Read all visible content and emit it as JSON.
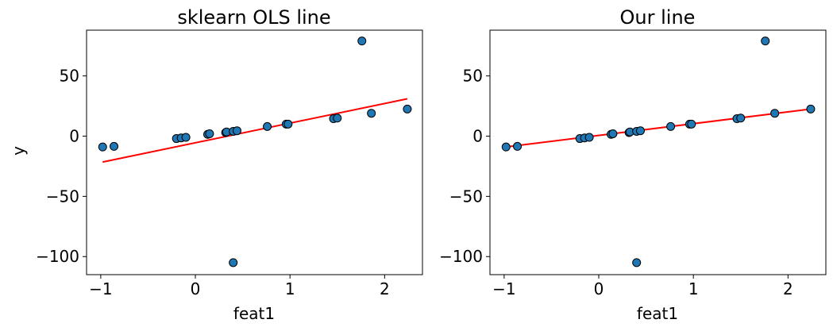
{
  "chart_data": [
    {
      "type": "scatter",
      "title": "sklearn OLS line",
      "xlabel": "feat1",
      "ylabel": "y",
      "xlim": [
        -1.15,
        2.4
      ],
      "ylim": [
        -115,
        88
      ],
      "xticks": [
        -1,
        0,
        1,
        2
      ],
      "xtick_labels": [
        "−1",
        "0",
        "1",
        "2"
      ],
      "yticks": [
        50,
        0,
        -50,
        -100
      ],
      "ytick_labels": [
        "50",
        "0",
        "−50",
        "−100"
      ],
      "grid": false,
      "point_color": "#1f77b4",
      "line_color": "#ff0000",
      "points": [
        {
          "x": -0.98,
          "y": -9
        },
        {
          "x": -0.86,
          "y": -8.5
        },
        {
          "x": -0.2,
          "y": -2
        },
        {
          "x": -0.15,
          "y": -1.5
        },
        {
          "x": -0.1,
          "y": -1
        },
        {
          "x": 0.13,
          "y": 1.5
        },
        {
          "x": 0.15,
          "y": 2
        },
        {
          "x": 0.32,
          "y": 3
        },
        {
          "x": 0.33,
          "y": 3.5
        },
        {
          "x": 0.4,
          "y": 4
        },
        {
          "x": 0.44,
          "y": 4.5
        },
        {
          "x": 0.76,
          "y": 8
        },
        {
          "x": 0.96,
          "y": 10
        },
        {
          "x": 0.98,
          "y": 10
        },
        {
          "x": 1.46,
          "y": 14.5
        },
        {
          "x": 1.5,
          "y": 15
        },
        {
          "x": 1.86,
          "y": 19
        },
        {
          "x": 2.24,
          "y": 22.5
        },
        {
          "x": 1.76,
          "y": 79
        },
        {
          "x": 0.4,
          "y": -105
        }
      ],
      "line": {
        "x": [
          -0.98,
          2.24
        ],
        "y": [
          -21.5,
          31
        ]
      }
    },
    {
      "type": "scatter",
      "title": "Our line",
      "xlabel": "feat1",
      "ylabel": "",
      "xlim": [
        -1.15,
        2.4
      ],
      "ylim": [
        -115,
        88
      ],
      "xticks": [
        -1,
        0,
        1,
        2
      ],
      "xtick_labels": [
        "−1",
        "0",
        "1",
        "2"
      ],
      "yticks": [
        50,
        0,
        -50,
        -100
      ],
      "ytick_labels": [
        "50",
        "0",
        "−50",
        "−100"
      ],
      "grid": false,
      "point_color": "#1f77b4",
      "line_color": "#ff0000",
      "points": [
        {
          "x": -0.98,
          "y": -9
        },
        {
          "x": -0.86,
          "y": -8.5
        },
        {
          "x": -0.2,
          "y": -2
        },
        {
          "x": -0.15,
          "y": -1.5
        },
        {
          "x": -0.1,
          "y": -1
        },
        {
          "x": 0.13,
          "y": 1.5
        },
        {
          "x": 0.15,
          "y": 2
        },
        {
          "x": 0.32,
          "y": 3
        },
        {
          "x": 0.33,
          "y": 3.5
        },
        {
          "x": 0.4,
          "y": 4
        },
        {
          "x": 0.44,
          "y": 4.5
        },
        {
          "x": 0.76,
          "y": 8
        },
        {
          "x": 0.96,
          "y": 10
        },
        {
          "x": 0.98,
          "y": 10
        },
        {
          "x": 1.46,
          "y": 14.5
        },
        {
          "x": 1.5,
          "y": 15
        },
        {
          "x": 1.86,
          "y": 19
        },
        {
          "x": 2.24,
          "y": 22.5
        },
        {
          "x": 1.76,
          "y": 79
        },
        {
          "x": 0.4,
          "y": -105
        }
      ],
      "line": {
        "x": [
          -0.98,
          2.24
        ],
        "y": [
          -9,
          22.5
        ]
      }
    }
  ]
}
